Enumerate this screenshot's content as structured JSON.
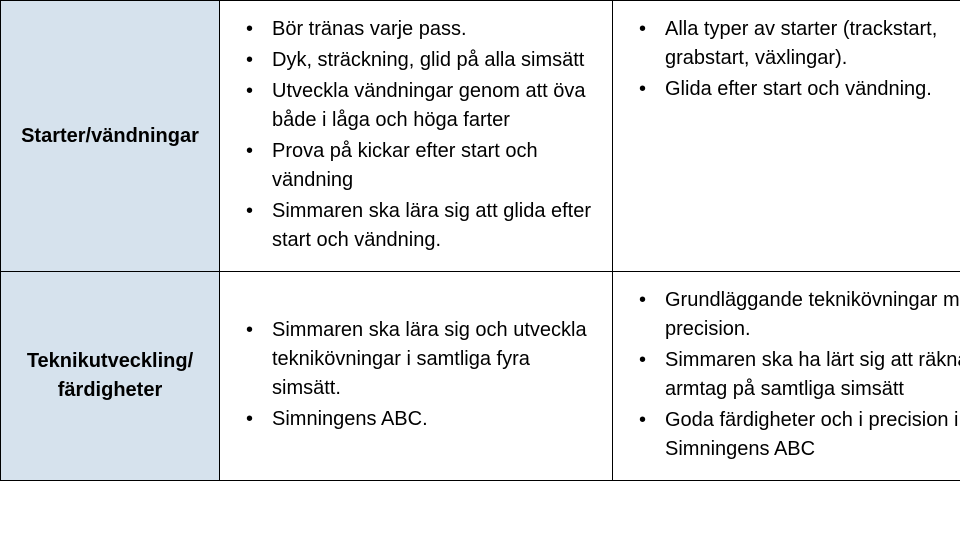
{
  "table": {
    "border_color": "#000000",
    "header_bg": "#d6e2ed",
    "body_bg": "#ffffff",
    "text_color": "#000000",
    "font_size_pt": 15,
    "rows": [
      {
        "header": "Starter/vändningar",
        "mid_bullets": [
          "Bör tränas varje pass.",
          "Dyk, sträckning, glid på alla simsätt",
          "Utveckla vändningar genom att öva både i låga och höga farter",
          "Prova på kickar efter start och vändning",
          "Simmaren ska lära sig att glida efter start och vändning."
        ],
        "right_bullets": [
          "Alla typer av starter (trackstart, grabstart, växlingar).",
          "Glida efter start och vändning."
        ]
      },
      {
        "header": "Teknikutveckling/ färdigheter",
        "mid_bullets": [
          "Simmaren ska lära sig och utveckla teknikövningar i samtliga fyra simsätt.",
          "Simningens ABC."
        ],
        "right_bullets": [
          "Grundläggande teknikövningar med god precision.",
          "Simmaren ska ha lärt sig att räkna antal armtag på samtliga simsätt",
          "Goda färdigheter och i precision i Simningens ABC"
        ]
      }
    ]
  }
}
